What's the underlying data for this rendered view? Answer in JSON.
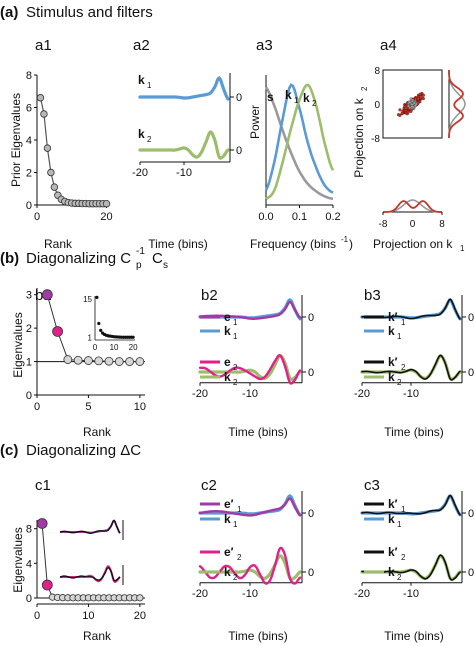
{
  "colors": {
    "blue": "#5b9bd5",
    "green": "#9cbd6b",
    "gray": "#9a9a9a",
    "magenta": "#a23aa6",
    "pink": "#e0218a",
    "red": "#c0392b",
    "black": "#111111"
  },
  "sections": [
    {
      "label": "(a)",
      "title": "Stimulus and filters"
    },
    {
      "label": "(b)",
      "title": "Diagonalizing C",
      "sup": "-1",
      "sub_p": "p",
      "sub_s": "s"
    },
    {
      "label": "(c)",
      "title": "Diagonalizing ΔC"
    }
  ],
  "panels": {
    "a1": {
      "tag": "a1",
      "ylabel": "Prior Eigenvalues",
      "xlabel": "Rank"
    },
    "a2": {
      "tag": "a2",
      "xlabel": "Time (bins)"
    },
    "a3": {
      "tag": "a3",
      "ylabel": "Power",
      "xlabel": "Frequency (bins",
      "xlabel_sup": "-1",
      "xlabel_tail": ")"
    },
    "a4": {
      "tag": "a4",
      "ylabel": "Projection on k",
      "ysub": "2",
      "xlabel": "Projection on k",
      "xsub": "1"
    },
    "b1": {
      "tag": "b1",
      "ylabel": "Eigenvalues",
      "xlabel": "Rank"
    },
    "b2": {
      "tag": "b2",
      "xlabel": "Time (bins)"
    },
    "b3": {
      "tag": "b3",
      "xlabel": "Time (bins)"
    },
    "c1": {
      "tag": "c1",
      "ylabel": "Eigenvalues",
      "xlabel": "Rank"
    },
    "c2": {
      "tag": "c2",
      "xlabel": "Time (bins)"
    },
    "c3": {
      "tag": "c3",
      "xlabel": "Time (bins)"
    }
  },
  "chart_data": [
    {
      "id": "a1",
      "type": "line",
      "x": [
        1,
        2,
        3,
        4,
        5,
        6,
        7,
        8,
        9,
        10,
        11,
        12,
        13,
        14,
        15,
        16,
        17,
        18,
        19,
        20
      ],
      "values": [
        6.6,
        5.6,
        3.5,
        2.0,
        1.1,
        0.6,
        0.35,
        0.22,
        0.15,
        0.12,
        0.1,
        0.1,
        0.09,
        0.09,
        0.08,
        0.08,
        0.08,
        0.08,
        0.08,
        0.08
      ],
      "xlim": [
        0,
        21
      ],
      "ylim": [
        0,
        8
      ],
      "xticks": [
        0,
        20
      ],
      "yticks": [
        0,
        2,
        4,
        6,
        8
      ]
    },
    {
      "id": "a3",
      "type": "line",
      "xlim": [
        0,
        0.2
      ],
      "xticks": [
        0.0,
        0.1,
        0.2
      ],
      "x": [
        0.0,
        0.025,
        0.05,
        0.075,
        0.1,
        0.125,
        0.15,
        0.175,
        0.2
      ],
      "series": [
        {
          "name": "s",
          "values": [
            0.95,
            0.8,
            0.6,
            0.42,
            0.27,
            0.17,
            0.11,
            0.07,
            0.05
          ]
        },
        {
          "name": "k1",
          "values": [
            0.12,
            0.35,
            0.7,
            0.97,
            0.78,
            0.5,
            0.3,
            0.16,
            0.1
          ]
        },
        {
          "name": "k2",
          "values": [
            0.05,
            0.12,
            0.35,
            0.62,
            0.85,
            0.97,
            0.8,
            0.5,
            0.28
          ]
        }
      ]
    },
    {
      "id": "a4",
      "type": "scatter",
      "xlim": [
        -8,
        8
      ],
      "ylim": [
        -8,
        8
      ],
      "xticks": [
        -8,
        0,
        8
      ],
      "yticks": [
        -8,
        0,
        8
      ]
    },
    {
      "id": "b1",
      "type": "line",
      "x": [
        1,
        2,
        3,
        4,
        5,
        6,
        7,
        8,
        9,
        10
      ],
      "values": [
        3.0,
        1.9,
        1.06,
        1.04,
        1.03,
        1.02,
        1.01,
        1.0,
        1.0,
        1.0
      ],
      "xlim": [
        0,
        10.5
      ],
      "ylim": [
        0,
        3.2
      ],
      "xticks": [
        0,
        5,
        10
      ],
      "yticks": [
        0,
        1,
        2,
        3
      ],
      "baseline": 1
    },
    {
      "id": "b1-inset",
      "type": "line",
      "values": [
        15.5,
        6,
        3.5,
        2.5,
        2,
        1.7,
        1.5,
        1.4,
        1.3,
        1.2,
        1.15,
        1.1,
        1.05,
        1.02,
        1.0,
        1.0,
        1.0,
        1.0,
        1.0,
        1.0
      ],
      "xlim": [
        0,
        21
      ],
      "ylim": [
        0,
        16
      ],
      "xticks": [
        0,
        10,
        20
      ],
      "yticks": [
        1,
        15
      ]
    },
    {
      "id": "c1",
      "type": "line",
      "x": [
        1,
        2,
        3,
        4,
        5,
        6,
        7,
        8,
        9,
        10,
        11,
        12,
        13,
        14,
        15,
        16,
        17,
        18,
        19,
        20
      ],
      "values": [
        8.6,
        1.5,
        0.1,
        0.06,
        0.04,
        0.03,
        0.02,
        0.02,
        0.02,
        0.02,
        0.02,
        0.02,
        0.02,
        0.02,
        0.02,
        0.02,
        0.02,
        0.02,
        0.02,
        0.02
      ],
      "xlim": [
        0,
        21
      ],
      "ylim": [
        0,
        9
      ],
      "xticks": [
        0,
        10,
        20
      ],
      "yticks": [
        0,
        4,
        8
      ]
    },
    {
      "id": "filters",
      "type": "line",
      "xlim": [
        -20,
        0
      ],
      "xticks": [
        -20,
        -10
      ],
      "series": [
        {
          "name": "k1",
          "values": [
            0,
            0,
            0,
            0,
            0,
            0,
            0,
            0,
            0,
            -0.02,
            -0.05,
            -0.04,
            0.0,
            0.04,
            0.08,
            0.12,
            0.2,
            0.5,
            0.95,
            0.4,
            -0.1
          ]
        },
        {
          "name": "k2",
          "values": [
            0,
            0,
            0,
            0,
            0,
            0,
            0,
            0,
            0,
            0.05,
            0.1,
            0.0,
            -0.25,
            -0.35,
            -0.1,
            0.4,
            0.9,
            0.5,
            -0.35,
            -0.3,
            0.0
          ]
        }
      ]
    }
  ],
  "filters_panel": {
    "k1": "k",
    "k1sub": "1",
    "k2": "k",
    "k2sub": "2",
    "e1": "e",
    "e2": "e",
    "prime": "′",
    "zero": "0",
    "xt1": "-20",
    "xt2": "-10"
  },
  "a3_curves": {
    "s": "s",
    "k1": "k",
    "k1sub": "1",
    "k2": "k",
    "k2sub": "2"
  }
}
